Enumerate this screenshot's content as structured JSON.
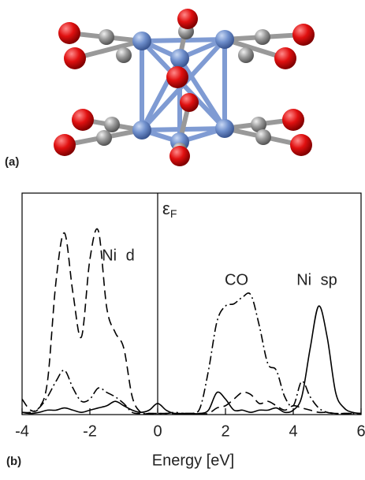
{
  "panel_labels": [
    "(a)",
    "(b)"
  ],
  "chart_data": {
    "type": "line",
    "x_label": "Energy [eV]",
    "fermi_level": 0,
    "fermi_label": {
      "symbol": "ε",
      "subscript": "F"
    },
    "x": [
      -4,
      -3.75,
      -3.5,
      -3.25,
      -3,
      -2.75,
      -2.5,
      -2.25,
      -2,
      -1.75,
      -1.5,
      -1.25,
      -1,
      -0.75,
      -0.5,
      -0.25,
      0,
      0.25,
      0.5,
      0.75,
      1,
      1.25,
      1.5,
      1.75,
      2,
      2.25,
      2.5,
      2.75,
      3,
      3.25,
      3.5,
      3.75,
      4,
      4.25,
      4.5,
      4.75,
      5,
      5.25,
      5.5,
      5.75,
      6
    ],
    "series": [
      {
        "name": "Ni d",
        "color": "#000000",
        "dash": "dashed",
        "values": [
          7,
          2,
          3,
          15,
          60,
          82,
          55,
          35,
          70,
          83,
          48,
          37,
          30,
          8,
          1,
          0.5,
          0.5,
          0.5,
          0.5,
          0.5,
          0.5,
          0.5,
          0.5,
          3,
          4,
          7,
          10,
          9,
          5,
          6,
          4,
          2,
          4,
          3,
          2,
          1,
          1,
          0.5,
          0.5,
          0.5,
          0.5
        ]
      },
      {
        "name": "CO",
        "color": "#000000",
        "dash": "dashdot",
        "values": [
          1,
          1,
          3,
          8,
          15,
          20,
          12,
          6,
          7,
          12,
          10,
          8,
          5,
          1,
          0.5,
          0.5,
          0.5,
          0.5,
          1,
          0.5,
          0.5,
          3,
          20,
          42,
          49,
          50,
          53,
          54,
          40,
          23,
          20,
          8,
          4,
          15,
          8,
          3,
          1,
          0.5,
          0.5,
          0.5,
          0.5
        ]
      },
      {
        "name": "Ni sp",
        "color": "#000000",
        "dash": "solid",
        "values": [
          1,
          0.5,
          1,
          2,
          2,
          3,
          2,
          1,
          2,
          3,
          4,
          6,
          4,
          2,
          1,
          2,
          5,
          2,
          0.5,
          0.5,
          0.5,
          0.5,
          2,
          10,
          7,
          2,
          2,
          1,
          2,
          2,
          3,
          1,
          2,
          8,
          30,
          49,
          35,
          10,
          3,
          1,
          0.5
        ]
      }
    ],
    "xlim": [
      -4,
      6
    ],
    "xticks": [
      -4,
      -2,
      0,
      2,
      4,
      6
    ],
    "ylim": [
      0,
      100
    ]
  }
}
